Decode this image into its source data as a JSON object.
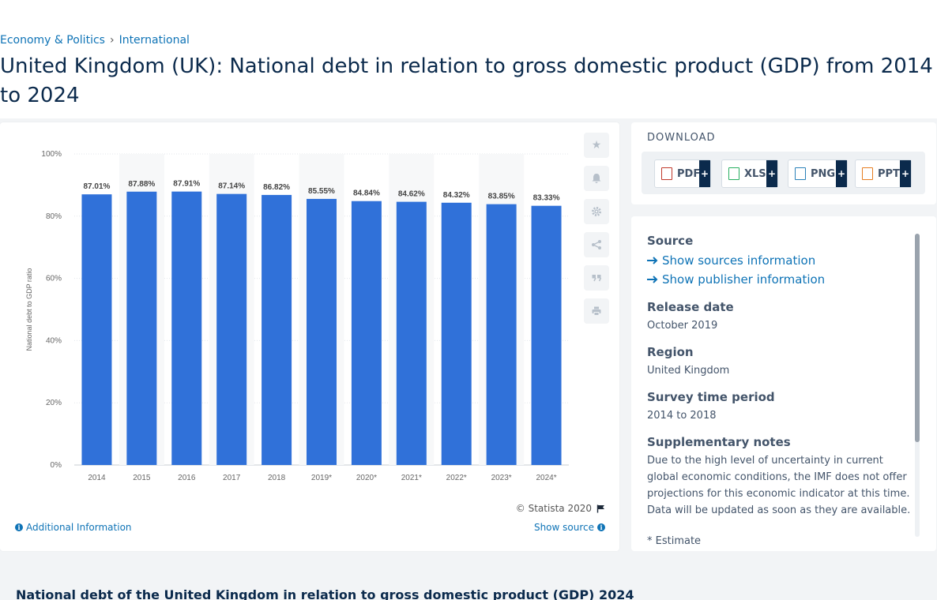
{
  "breadcrumb": {
    "item1": "Economy & Politics",
    "separator": "›",
    "item2": "International"
  },
  "page_title": "United Kingdom (UK): National debt in relation to gross domestic product (GDP) from 2014 to 2024",
  "chart_data": {
    "type": "bar",
    "categories": [
      "2014",
      "2015",
      "2016",
      "2017",
      "2018",
      "2019*",
      "2020*",
      "2021*",
      "2022*",
      "2023*",
      "2024*"
    ],
    "values": [
      87.01,
      87.88,
      87.91,
      87.14,
      86.82,
      85.55,
      84.84,
      84.62,
      84.32,
      83.85,
      83.33
    ],
    "data_labels": [
      "87.01%",
      "87.88%",
      "87.91%",
      "87.14%",
      "86.82%",
      "85.55%",
      "84.84%",
      "84.62%",
      "84.32%",
      "83.85%",
      "83.33%"
    ],
    "ylabel": "National debt to GDP ratio",
    "yticks": [
      "0%",
      "20%",
      "40%",
      "60%",
      "80%",
      "100%"
    ],
    "ylim": [
      0,
      100
    ],
    "bar_color": "#3071d9",
    "grid": true
  },
  "chart_footer": {
    "copyright": "© Statista 2020",
    "additional_info": "Additional Information",
    "show_source": "Show source"
  },
  "download": {
    "title": "DOWNLOAD",
    "buttons": [
      {
        "label": "PDF",
        "plus": "+"
      },
      {
        "label": "XLS",
        "plus": "+"
      },
      {
        "label": "PNG",
        "plus": "+"
      },
      {
        "label": "PPT",
        "plus": "+"
      }
    ]
  },
  "info": {
    "source_label": "Source",
    "sources_link": "Show sources information",
    "publisher_link": "Show publisher information",
    "release_label": "Release date",
    "release_value": "October 2019",
    "region_label": "Region",
    "region_value": "United Kingdom",
    "survey_label": "Survey time period",
    "survey_value": "2014 to 2018",
    "notes_label": "Supplementary notes",
    "notes_value": "Due to the high level of uncertainty in current global economic conditions, the IMF does not offer projections for this economic indicator at this time. Data will be updated as soon as they are available.",
    "estimate_note": "* Estimate"
  },
  "bottom_title": "National debt of the United Kingdom in relation to gross domestic product (GDP) 2024"
}
